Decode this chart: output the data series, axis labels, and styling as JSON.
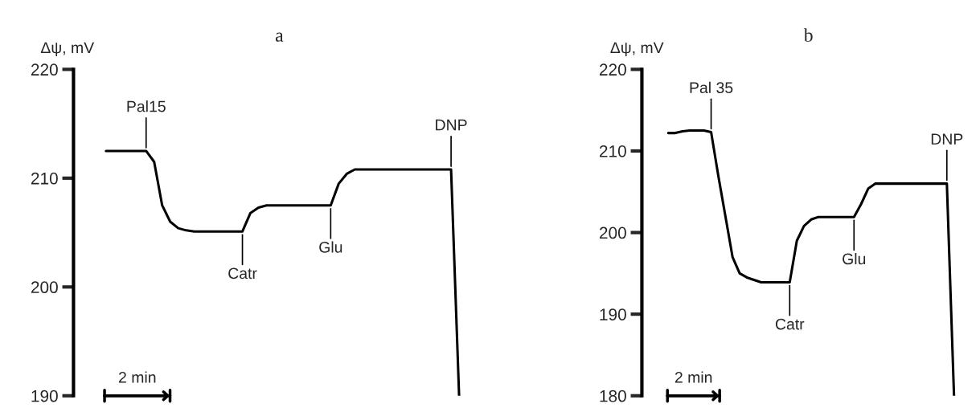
{
  "chart_data": [
    {
      "type": "line",
      "title": "a",
      "ylabel": "Δψ, mV",
      "tick_labels": "y",
      "grid": false,
      "categories": [
        null,
        null,
        null,
        null,
        null,
        null,
        null,
        null,
        null,
        null,
        null,
        null,
        null,
        null,
        null,
        null,
        null,
        null,
        null,
        null,
        null,
        null,
        null,
        null,
        null,
        null,
        null,
        null,
        null,
        null,
        null,
        null,
        null,
        null,
        null,
        null,
        null,
        null,
        null,
        null,
        null,
        null,
        null,
        null,
        null
      ],
      "series": [
        {
          "color": "#000000",
          "values": [
            212.5,
            212.5,
            212.5,
            212.5,
            212.5,
            212.5,
            211.5,
            207.5,
            206,
            205.4,
            205.2,
            205.1,
            205.1,
            205.1,
            205.1,
            205.1,
            205.1,
            205.1,
            206.8,
            207.3,
            207.5,
            207.5,
            207.5,
            207.5,
            207.5,
            207.5,
            207.5,
            207.5,
            207.5,
            209.5,
            210.4,
            210.8,
            210.8,
            210.8,
            210.8,
            210.8,
            210.8,
            210.8,
            210.8,
            210.8,
            210.8,
            210.8,
            210.8,
            210.8,
            190
          ]
        }
      ],
      "ylim": [
        190,
        220
      ],
      "yticks": [
        190,
        200,
        210,
        220
      ],
      "annotations": [
        {
          "text": "Pal15",
          "y": 212.5
        },
        {
          "text": "Catr",
          "y": 205.1
        },
        {
          "text": "Glu",
          "y": 207.5
        },
        {
          "text": "DNP",
          "y": 210.8
        },
        "2 min"
      ]
    },
    {
      "type": "line",
      "title": "b",
      "ylabel": "Δψ, mV",
      "tick_labels": "y",
      "grid": false,
      "categories": [
        null,
        null,
        null,
        null,
        null,
        null,
        null,
        null,
        null,
        null,
        null,
        null,
        null,
        null,
        null,
        null,
        null,
        null,
        null,
        null,
        null,
        null,
        null,
        null,
        null,
        null,
        null,
        null,
        null,
        null,
        null,
        null,
        null,
        null,
        null,
        null,
        null,
        null,
        null,
        null,
        null
      ],
      "series": [
        {
          "color": "#000000",
          "values": [
            212.2,
            212.2,
            212.4,
            212.5,
            212.5,
            212.5,
            212.3,
            207,
            202,
            197,
            195,
            194.5,
            194.2,
            193.9,
            193.9,
            193.9,
            193.9,
            193.9,
            199,
            200.8,
            201.6,
            201.9,
            201.9,
            201.9,
            201.9,
            201.9,
            201.9,
            203.5,
            205.4,
            206,
            206,
            206,
            206,
            206,
            206,
            206,
            206,
            206,
            206,
            206,
            180
          ]
        }
      ],
      "ylim": [
        180,
        220
      ],
      "yticks": [
        180,
        190,
        200,
        210,
        220
      ],
      "annotations": [
        {
          "text": "Pal 35",
          "y": 212.3
        },
        {
          "text": "Catr",
          "y": 193.9
        },
        {
          "text": "Glu",
          "y": 201.9
        },
        {
          "text": "DNP",
          "y": 206
        },
        "2 min"
      ]
    }
  ]
}
